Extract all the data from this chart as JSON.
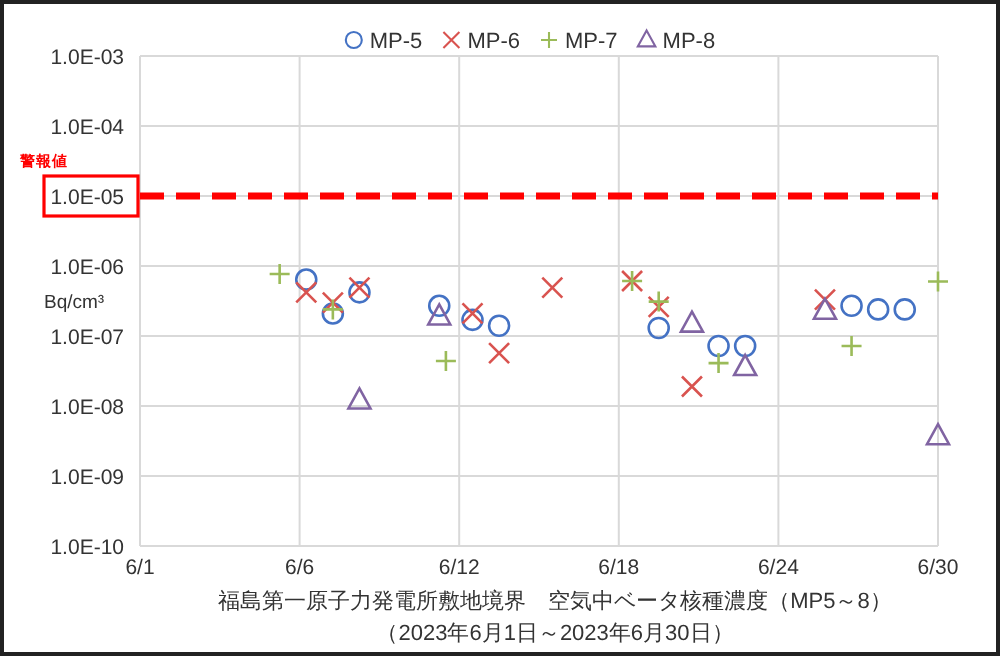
{
  "chart_data": {
    "type": "scatter",
    "title": "福島第一原子力発電所敷地境界　空気中ベータ核種濃度（MP5～8）",
    "subtitle": "（2023年6月1日～2023年6月30日）",
    "ylabel": "Bq/cm³",
    "log": "y",
    "grid": true,
    "legend": "top",
    "xlim": [
      "2023-05-31",
      "2023-06-30"
    ],
    "xticks": [
      {
        "value": "2023-05-31",
        "label": "6/1"
      },
      {
        "value": "2023-06-06",
        "label": "6/6"
      },
      {
        "value": "2023-06-12",
        "label": "6/12"
      },
      {
        "value": "2023-06-18",
        "label": "6/18"
      },
      {
        "value": "2023-06-24",
        "label": "6/24"
      },
      {
        "value": "2023-06-30",
        "label": "6/30"
      }
    ],
    "ylim": [
      1e-10,
      0.001
    ],
    "yticks": [
      {
        "value": 1e-10,
        "label": "1.0E-10"
      },
      {
        "value": 1e-09,
        "label": "1.0E-09"
      },
      {
        "value": 1e-08,
        "label": "1.0E-08"
      },
      {
        "value": 1e-07,
        "label": "1.0E-07"
      },
      {
        "value": 1e-06,
        "label": "1.0E-06"
      },
      {
        "value": 1e-05,
        "label": "1.0E-05"
      },
      {
        "value": 0.0001,
        "label": "1.0E-04"
      },
      {
        "value": 0.001,
        "label": "1.0E-03"
      }
    ],
    "ref_lines": [
      {
        "axis": "y",
        "value": 1e-05,
        "label": "警報値",
        "color": "#ff0000",
        "line_style": "dashed"
      }
    ],
    "series": [
      {
        "name": "MP-5",
        "color": "#4472c4",
        "marker": "circle",
        "x": [
          "2023-06-06T06:00",
          "2023-06-07T06:00",
          "2023-06-08T06:00",
          "2023-06-11T06:00",
          "2023-06-12T12:00",
          "2023-06-13T12:00",
          "2023-06-19T12:00",
          "2023-06-21T18:00",
          "2023-06-22T18:00",
          "2023-06-26T18:00",
          "2023-06-27T18:00",
          "2023-06-28T18:00"
        ],
        "values": [
          6.4e-07,
          2.1e-07,
          4.2e-07,
          2.7e-07,
          1.7e-07,
          1.4e-07,
          1.3e-07,
          7.2e-08,
          7.2e-08,
          2.7e-07,
          2.4e-07,
          2.4e-07
        ]
      },
      {
        "name": "MP-6",
        "color": "#d9534f",
        "marker": "x",
        "x": [
          "2023-06-06T06:00",
          "2023-06-07T06:00",
          "2023-06-08T06:00",
          "2023-06-12T12:00",
          "2023-06-13T12:00",
          "2023-06-15T12:00",
          "2023-06-18T12:00",
          "2023-06-19T12:00",
          "2023-06-20T18:00",
          "2023-06-25T18:00"
        ],
        "values": [
          4.2e-07,
          3e-07,
          4.9e-07,
          2.1e-07,
          5.7e-08,
          4.9e-07,
          6.1e-07,
          2.6e-07,
          1.9e-08,
          3.3e-07
        ]
      },
      {
        "name": "MP-7",
        "color": "#9bbb59",
        "marker": "cross",
        "x": [
          "2023-06-05T06:00",
          "2023-06-07T06:00",
          "2023-06-11T12:00",
          "2023-06-18T12:00",
          "2023-06-19T12:00",
          "2023-06-21T18:00",
          "2023-06-26T18:00",
          "2023-06-30T00:00"
        ],
        "values": [
          7.7e-07,
          2.4e-07,
          4.4e-08,
          6.1e-07,
          3.1e-07,
          4.1e-08,
          7.2e-08,
          6e-07
        ]
      },
      {
        "name": "MP-8",
        "color": "#8064a2",
        "marker": "triangle",
        "x": [
          "2023-06-08T06:00",
          "2023-06-11T06:00",
          "2023-06-20T18:00",
          "2023-06-22T18:00",
          "2023-06-25T18:00",
          "2023-06-30T00:00"
        ],
        "values": [
          1.2e-08,
          1.9e-07,
          1.5e-07,
          3.6e-08,
          2.3e-07,
          3.7e-09
        ]
      }
    ]
  }
}
